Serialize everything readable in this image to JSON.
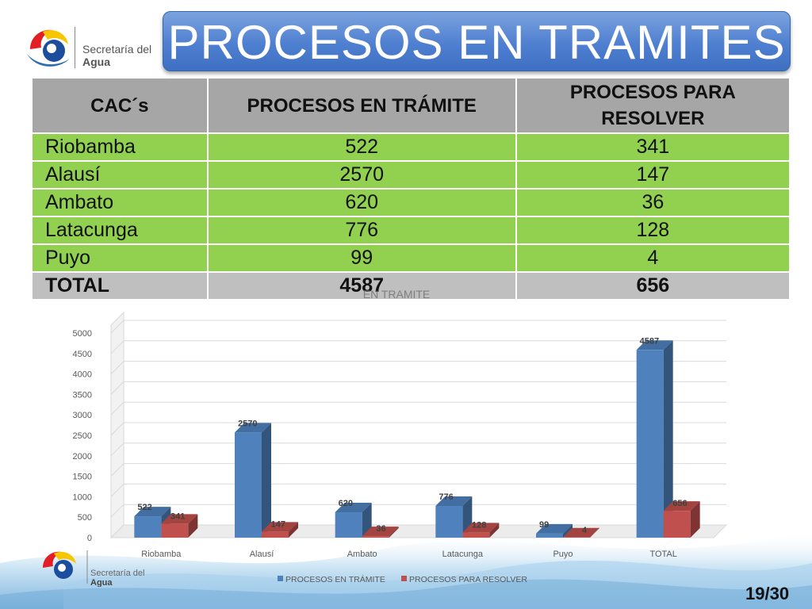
{
  "title": "PROCESOS EN TRAMITES",
  "logo": {
    "line1": "Secretaría del",
    "line2": "Agua"
  },
  "table": {
    "headers": [
      "CAC´s",
      "PROCESOS EN TRÁMITE",
      "PROCESOS PARA RESOLVER"
    ],
    "rows": [
      [
        "Riobamba",
        "522",
        "341"
      ],
      [
        "Alausí",
        "2570",
        "147"
      ],
      [
        "Ambato",
        "620",
        "36"
      ],
      [
        "Latacunga",
        "776",
        "128"
      ],
      [
        "Puyo",
        "99",
        "4"
      ]
    ],
    "total": [
      "TOTAL",
      "4587",
      "656"
    ]
  },
  "chart_data": {
    "type": "bar",
    "title": "EN TRAMITE",
    "categories": [
      "Riobamba",
      "Alausí",
      "Ambato",
      "Latacunga",
      "Puyo",
      "TOTAL"
    ],
    "series": [
      {
        "name": "PROCESOS EN TRÁMITE",
        "values": [
          522,
          2570,
          620,
          776,
          99,
          4587
        ],
        "color": "#4f81bd"
      },
      {
        "name": "PROCESOS PARA RESOLVER",
        "values": [
          341,
          147,
          36,
          128,
          4,
          656
        ],
        "color": "#c0504d"
      }
    ],
    "ylim": [
      0,
      5000
    ],
    "yticks": [
      0,
      500,
      1000,
      1500,
      2000,
      2500,
      3000,
      3500,
      4000,
      4500,
      5000
    ],
    "grid": true,
    "legend": "bottom",
    "style": "3d-clustered-column"
  },
  "slide_number": "19/30"
}
